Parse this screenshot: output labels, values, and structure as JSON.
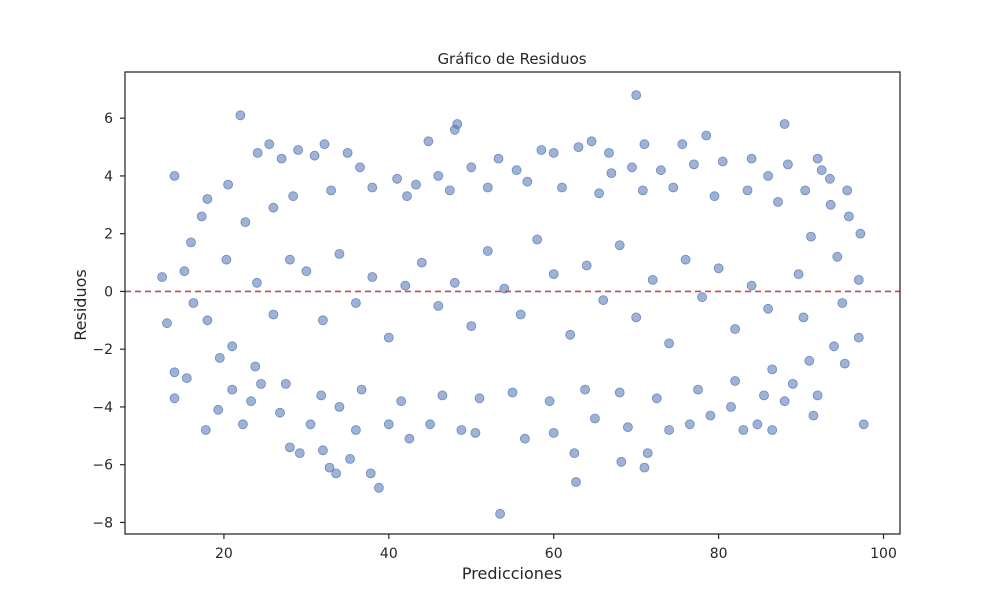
{
  "chart_data": {
    "type": "scatter",
    "title": "Gráfico de Residuos",
    "xlabel": "Predicciones",
    "ylabel": "Residuos",
    "xlim": [
      8,
      102
    ],
    "ylim": [
      -8.4,
      7.6
    ],
    "xticks": [
      20,
      40,
      60,
      80,
      100
    ],
    "yticks": [
      -8,
      -6,
      -4,
      -2,
      0,
      2,
      4,
      6
    ],
    "xtick_labels": [
      "20",
      "40",
      "60",
      "80",
      "100"
    ],
    "ytick_labels": [
      "−8",
      "−6",
      "−4",
      "−2",
      "0",
      "2",
      "4",
      "6"
    ],
    "grid": false,
    "legend": false,
    "reference_line": {
      "y": 0,
      "style": "dashed",
      "color": "#c44e52"
    },
    "point_color": "#4c72b0",
    "point_opacity": 0.55,
    "points": [
      [
        22.0,
        6.1
      ],
      [
        70.0,
        6.8
      ],
      [
        48.3,
        5.8
      ],
      [
        48.0,
        5.6
      ],
      [
        78.5,
        5.4
      ],
      [
        88.0,
        5.8
      ],
      [
        14.0,
        4.0
      ],
      [
        25.5,
        5.1
      ],
      [
        29.0,
        4.9
      ],
      [
        32.2,
        5.1
      ],
      [
        44.8,
        5.2
      ],
      [
        53.3,
        4.6
      ],
      [
        60.0,
        4.8
      ],
      [
        63.0,
        5.0
      ],
      [
        64.6,
        5.2
      ],
      [
        66.7,
        4.8
      ],
      [
        71.0,
        5.1
      ],
      [
        75.6,
        5.1
      ],
      [
        84.0,
        4.6
      ],
      [
        88.4,
        4.4
      ],
      [
        92.0,
        4.6
      ],
      [
        92.5,
        4.2
      ],
      [
        93.5,
        3.9
      ],
      [
        95.6,
        3.5
      ],
      [
        12.5,
        0.5
      ],
      [
        13.1,
        -1.1
      ],
      [
        14.0,
        -2.8
      ],
      [
        14.0,
        -3.7
      ],
      [
        15.5,
        -3.0
      ],
      [
        17.8,
        -4.8
      ],
      [
        19.3,
        -4.1
      ],
      [
        22.3,
        -4.6
      ],
      [
        23.3,
        -3.8
      ],
      [
        28.0,
        -5.4
      ],
      [
        29.2,
        -5.6
      ],
      [
        32.0,
        -5.5
      ],
      [
        32.8,
        -6.1
      ],
      [
        33.6,
        -6.3
      ],
      [
        35.3,
        -5.8
      ],
      [
        37.8,
        -6.3
      ],
      [
        38.8,
        -6.8
      ],
      [
        48.8,
        -4.8
      ],
      [
        53.5,
        -7.7
      ],
      [
        62.5,
        -5.6
      ],
      [
        62.7,
        -6.6
      ],
      [
        68.2,
        -5.9
      ],
      [
        71.0,
        -6.1
      ],
      [
        71.4,
        -5.6
      ],
      [
        97.6,
        -4.6
      ],
      [
        95.3,
        -2.5
      ],
      [
        97.0,
        -1.6
      ],
      [
        97.0,
        0.4
      ],
      [
        97.2,
        2.0
      ],
      [
        92.0,
        -3.6
      ],
      [
        91.5,
        -4.3
      ],
      [
        88.0,
        -3.8
      ],
      [
        84.7,
        -4.6
      ],
      [
        86.5,
        -4.8
      ],
      [
        83.0,
        -4.8
      ],
      [
        76.5,
        -4.6
      ],
      [
        18.0,
        3.2
      ],
      [
        20.5,
        3.7
      ],
      [
        24.1,
        4.8
      ],
      [
        27.0,
        4.6
      ],
      [
        31.0,
        4.7
      ],
      [
        35.0,
        4.8
      ],
      [
        36.5,
        4.3
      ],
      [
        41.0,
        3.9
      ],
      [
        43.3,
        3.7
      ],
      [
        46.0,
        4.0
      ],
      [
        50.0,
        4.3
      ],
      [
        55.5,
        4.2
      ],
      [
        58.5,
        4.9
      ],
      [
        67.0,
        4.1
      ],
      [
        69.5,
        4.3
      ],
      [
        73.0,
        4.2
      ],
      [
        77.0,
        4.4
      ],
      [
        80.5,
        4.5
      ],
      [
        86.0,
        4.0
      ],
      [
        90.5,
        3.5
      ],
      [
        16.0,
        1.7
      ],
      [
        17.3,
        2.6
      ],
      [
        15.2,
        0.7
      ],
      [
        16.3,
        -0.4
      ],
      [
        18.0,
        -1.0
      ],
      [
        19.5,
        -2.3
      ],
      [
        21.0,
        -3.4
      ],
      [
        24.5,
        -3.2
      ],
      [
        26.8,
        -4.2
      ],
      [
        30.5,
        -4.6
      ],
      [
        34.0,
        -4.0
      ],
      [
        36.0,
        -4.8
      ],
      [
        40.0,
        -4.6
      ],
      [
        42.5,
        -5.1
      ],
      [
        45.0,
        -4.6
      ],
      [
        50.5,
        -4.9
      ],
      [
        56.5,
        -5.1
      ],
      [
        60.0,
        -4.9
      ],
      [
        65.0,
        -4.4
      ],
      [
        69.0,
        -4.7
      ],
      [
        74.0,
        -4.8
      ],
      [
        79.0,
        -4.3
      ],
      [
        81.5,
        -4.0
      ],
      [
        85.5,
        -3.6
      ],
      [
        89.0,
        -3.2
      ],
      [
        94.0,
        -1.9
      ],
      [
        95.0,
        -0.4
      ],
      [
        94.4,
        1.2
      ],
      [
        95.8,
        2.6
      ],
      [
        93.6,
        3.0
      ],
      [
        91.2,
        1.9
      ],
      [
        89.7,
        0.6
      ],
      [
        90.3,
        -0.9
      ],
      [
        91.0,
        -2.4
      ],
      [
        20.3,
        1.1
      ],
      [
        22.6,
        2.4
      ],
      [
        26.0,
        2.9
      ],
      [
        28.4,
        3.3
      ],
      [
        33.0,
        3.5
      ],
      [
        38.0,
        3.6
      ],
      [
        42.2,
        3.3
      ],
      [
        47.4,
        3.5
      ],
      [
        52.0,
        3.6
      ],
      [
        56.8,
        3.8
      ],
      [
        61.0,
        3.6
      ],
      [
        65.5,
        3.4
      ],
      [
        70.8,
        3.5
      ],
      [
        74.5,
        3.6
      ],
      [
        79.5,
        3.3
      ],
      [
        83.5,
        3.5
      ],
      [
        87.2,
        3.1
      ],
      [
        21.0,
        -1.9
      ],
      [
        23.8,
        -2.6
      ],
      [
        27.5,
        -3.2
      ],
      [
        31.8,
        -3.6
      ],
      [
        36.7,
        -3.4
      ],
      [
        41.5,
        -3.8
      ],
      [
        46.5,
        -3.6
      ],
      [
        51.0,
        -3.7
      ],
      [
        55.0,
        -3.5
      ],
      [
        59.5,
        -3.8
      ],
      [
        63.8,
        -3.4
      ],
      [
        68.0,
        -3.5
      ],
      [
        72.5,
        -3.7
      ],
      [
        77.5,
        -3.4
      ],
      [
        82.0,
        -3.1
      ],
      [
        86.5,
        -2.7
      ],
      [
        44.0,
        1.0
      ],
      [
        46.0,
        -0.5
      ],
      [
        48.0,
        0.3
      ],
      [
        50.0,
        -1.2
      ],
      [
        52.0,
        1.4
      ],
      [
        54.0,
        0.1
      ],
      [
        56.0,
        -0.8
      ],
      [
        58.0,
        1.8
      ],
      [
        60.0,
        0.6
      ],
      [
        62.0,
        -1.5
      ],
      [
        64.0,
        0.9
      ],
      [
        66.0,
        -0.3
      ],
      [
        68.0,
        1.6
      ],
      [
        70.0,
        -0.9
      ],
      [
        72.0,
        0.4
      ],
      [
        74.0,
        -1.8
      ],
      [
        76.0,
        1.1
      ],
      [
        78.0,
        -0.2
      ],
      [
        80.0,
        0.8
      ],
      [
        82.0,
        -1.3
      ],
      [
        84.0,
        0.2
      ],
      [
        86.0,
        -0.6
      ],
      [
        30.0,
        0.7
      ],
      [
        32.0,
        -1.0
      ],
      [
        34.0,
        1.3
      ],
      [
        36.0,
        -0.4
      ],
      [
        38.0,
        0.5
      ],
      [
        40.0,
        -1.6
      ],
      [
        42.0,
        0.2
      ],
      [
        26.0,
        -0.8
      ],
      [
        28.0,
        1.1
      ],
      [
        24.0,
        0.3
      ]
    ]
  }
}
